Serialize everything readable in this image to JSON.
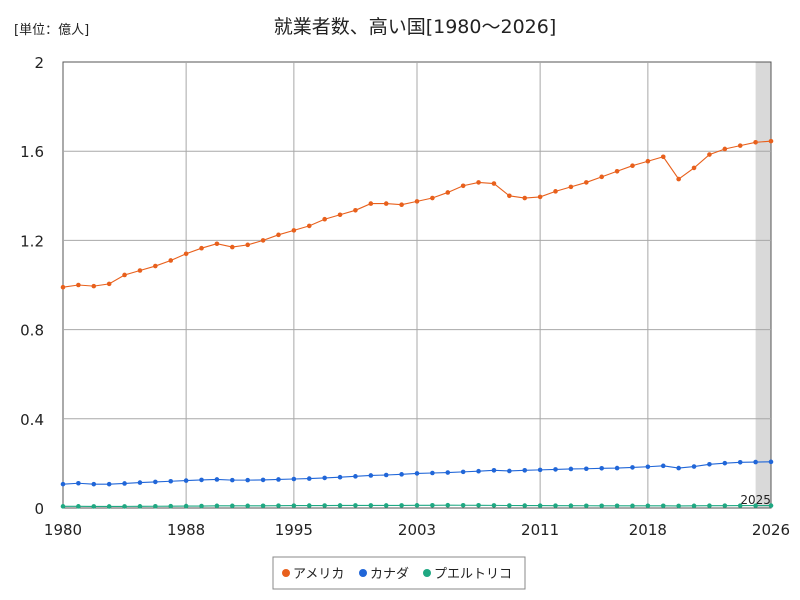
{
  "chart_data": {
    "type": "line",
    "title": "就業者数、高い国[1980～2026]",
    "unit_label": "[単位：億人]",
    "x_start": 1980,
    "x_end": 2026,
    "xticks": [
      "1980",
      "1988",
      "1995",
      "2003",
      "2011",
      "2018",
      "2026"
    ],
    "ylim": [
      0,
      2
    ],
    "yticks": [
      "0",
      "0.4",
      "0.8",
      "1.2",
      "1.6",
      "2"
    ],
    "grid": true,
    "legend_position": "bottom",
    "forecast_start": 2025,
    "forecast_label": "2025",
    "series": [
      {
        "name": "アメリカ",
        "color": "#e8601c",
        "x": [
          1980,
          1981,
          1982,
          1983,
          1984,
          1985,
          1986,
          1987,
          1988,
          1989,
          1990,
          1991,
          1992,
          1993,
          1994,
          1995,
          1996,
          1997,
          1998,
          1999,
          2000,
          2001,
          2002,
          2003,
          2004,
          2005,
          2006,
          2007,
          2008,
          2009,
          2010,
          2011,
          2012,
          2013,
          2014,
          2015,
          2016,
          2017,
          2018,
          2019,
          2020,
          2021,
          2022,
          2023,
          2024,
          2025,
          2026
        ],
        "values": [
          0.99,
          1.0,
          0.995,
          1.005,
          1.045,
          1.065,
          1.085,
          1.11,
          1.14,
          1.165,
          1.185,
          1.17,
          1.18,
          1.2,
          1.225,
          1.245,
          1.265,
          1.295,
          1.315,
          1.335,
          1.365,
          1.365,
          1.36,
          1.375,
          1.39,
          1.415,
          1.445,
          1.46,
          1.455,
          1.4,
          1.39,
          1.395,
          1.42,
          1.44,
          1.46,
          1.485,
          1.51,
          1.535,
          1.555,
          1.575,
          1.475,
          1.525,
          1.585,
          1.61,
          1.625,
          1.64,
          1.645
        ]
      },
      {
        "name": "カナダ",
        "color": "#2066d8",
        "x": [
          1980,
          1981,
          1982,
          1983,
          1984,
          1985,
          1986,
          1987,
          1988,
          1989,
          1990,
          1991,
          1992,
          1993,
          1994,
          1995,
          1996,
          1997,
          1998,
          1999,
          2000,
          2001,
          2002,
          2003,
          2004,
          2005,
          2006,
          2007,
          2008,
          2009,
          2010,
          2011,
          2012,
          2013,
          2014,
          2015,
          2016,
          2017,
          2018,
          2019,
          2020,
          2021,
          2022,
          2023,
          2024,
          2025,
          2026
        ],
        "values": [
          0.107,
          0.111,
          0.107,
          0.107,
          0.11,
          0.114,
          0.117,
          0.12,
          0.123,
          0.126,
          0.128,
          0.125,
          0.125,
          0.126,
          0.128,
          0.13,
          0.132,
          0.135,
          0.138,
          0.142,
          0.146,
          0.148,
          0.151,
          0.155,
          0.157,
          0.159,
          0.162,
          0.165,
          0.169,
          0.166,
          0.169,
          0.171,
          0.173,
          0.175,
          0.176,
          0.178,
          0.179,
          0.182,
          0.185,
          0.189,
          0.179,
          0.186,
          0.196,
          0.201,
          0.205,
          0.206,
          0.207
        ]
      },
      {
        "name": "プエルトリコ",
        "color": "#1fa882",
        "x": [
          1980,
          1981,
          1982,
          1983,
          1984,
          1985,
          1986,
          1987,
          1988,
          1989,
          1990,
          1991,
          1992,
          1993,
          1994,
          1995,
          1996,
          1997,
          1998,
          1999,
          2000,
          2001,
          2002,
          2003,
          2004,
          2005,
          2006,
          2007,
          2008,
          2009,
          2010,
          2011,
          2012,
          2013,
          2014,
          2015,
          2016,
          2017,
          2018,
          2019,
          2020,
          2021,
          2022,
          2023,
          2024,
          2025,
          2026
        ],
        "values": [
          0.0075,
          0.0074,
          0.0071,
          0.007,
          0.0072,
          0.0074,
          0.0078,
          0.0082,
          0.0086,
          0.0089,
          0.0096,
          0.0096,
          0.0098,
          0.01,
          0.0105,
          0.0107,
          0.0108,
          0.0111,
          0.0114,
          0.0115,
          0.0116,
          0.0114,
          0.0117,
          0.0119,
          0.0121,
          0.0124,
          0.0123,
          0.0121,
          0.0118,
          0.0112,
          0.0109,
          0.0107,
          0.0105,
          0.0103,
          0.0101,
          0.01,
          0.0099,
          0.0098,
          0.0099,
          0.01,
          0.0093,
          0.0096,
          0.0103,
          0.0106,
          0.0107,
          0.0107,
          0.0108
        ]
      }
    ]
  }
}
